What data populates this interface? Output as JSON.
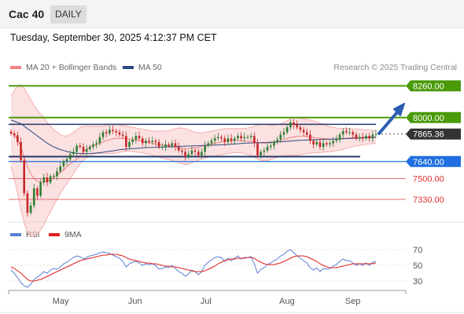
{
  "header": {
    "title": "Cac 40",
    "period": "DAILY"
  },
  "datetime": "Tuesday, September 30, 2025 4:12:37 PM CET",
  "legend": {
    "ma20": {
      "label": "MA 20 + Bollinger Bands",
      "color": "#f08080"
    },
    "ma50": {
      "label": "MA 50",
      "color": "#2d4a80"
    }
  },
  "copyright": "Research © 2025 Trading Central",
  "rsi_legend": {
    "rsi": {
      "label": "RSI",
      "color": "#5b7fd6"
    },
    "ma9": {
      "label": "9MA",
      "color": "#e02020"
    }
  },
  "colors": {
    "up": "#2e7d32",
    "down": "#c62828",
    "resistance": "#4a9a0a",
    "support": "#1f6fe0",
    "support_red": "#e07070",
    "current": "#333333"
  },
  "chart_data": [
    {
      "type": "candlestick",
      "ylim": [
        7150,
        8320
      ],
      "x_months": [
        "May",
        "Jun",
        "Jul",
        "Aug",
        "Sep"
      ],
      "levels": [
        {
          "value": 8260,
          "label": "8260.00",
          "kind": "resistance"
        },
        {
          "value": 8000,
          "label": "8000.00",
          "kind": "resistance"
        },
        {
          "value": 7865.36,
          "label": "7865.36",
          "kind": "current"
        },
        {
          "value": 7640,
          "label": "7640.00",
          "kind": "support"
        },
        {
          "value": 7500,
          "label": "7500.00",
          "kind": "support_red"
        },
        {
          "value": 7330,
          "label": "7330.00",
          "kind": "support_red"
        }
      ],
      "closes": [
        7870,
        7855,
        7800,
        7650,
        7380,
        7220,
        7280,
        7420,
        7360,
        7470,
        7510,
        7470,
        7520,
        7520,
        7560,
        7600,
        7640,
        7660,
        7700,
        7720,
        7770,
        7760,
        7720,
        7740,
        7760,
        7780,
        7790,
        7840,
        7880,
        7870,
        7900,
        7890,
        7880,
        7860,
        7850,
        7760,
        7800,
        7820,
        7850,
        7830,
        7790,
        7810,
        7800,
        7810,
        7800,
        7760,
        7760,
        7780,
        7770,
        7790,
        7760,
        7730,
        7720,
        7680,
        7700,
        7730,
        7720,
        7690,
        7720,
        7770,
        7790,
        7810,
        7830,
        7840,
        7830,
        7800,
        7830,
        7810,
        7830,
        7850,
        7830,
        7840,
        7840,
        7850,
        7790,
        7690,
        7720,
        7730,
        7760,
        7770,
        7800,
        7820,
        7860,
        7880,
        7920,
        7960,
        7940,
        7920,
        7900,
        7880,
        7860,
        7810,
        7780,
        7800,
        7760,
        7790,
        7780,
        7790,
        7810,
        7820,
        7860,
        7890,
        7880,
        7880,
        7860,
        7830,
        7840,
        7830,
        7850,
        7830,
        7860,
        7865
      ],
      "ma20": [
        7880,
        7860,
        7820,
        7760,
        7680,
        7600,
        7540,
        7500,
        7480,
        7470,
        7470,
        7480,
        7490,
        7510,
        7530,
        7550,
        7570,
        7600,
        7620,
        7640,
        7660,
        7690,
        7720,
        7740,
        7760,
        7770,
        7780,
        7790,
        7800,
        7810,
        7820,
        7825,
        7830,
        7830,
        7830,
        7830,
        7825,
        7820,
        7815,
        7810,
        7805,
        7800,
        7795,
        7790,
        7785,
        7780,
        7775,
        7770,
        7768,
        7765,
        7760,
        7755,
        7750,
        7745,
        7745,
        7748,
        7752,
        7758,
        7765,
        7772,
        7780,
        7785,
        7790,
        7795,
        7800,
        7805,
        7808,
        7810,
        7812,
        7812,
        7810,
        7808,
        7806,
        7805,
        7800,
        7795,
        7792,
        7790,
        7792,
        7795,
        7800,
        7806,
        7812,
        7820,
        7828,
        7836,
        7842,
        7846,
        7848,
        7848,
        7846,
        7842,
        7838,
        7834,
        7830,
        7828,
        7826,
        7824,
        7822,
        7822,
        7824,
        7828,
        7832,
        7834,
        7836,
        7836,
        7836,
        7836,
        7837,
        7838,
        7840,
        7842
      ],
      "upper_band": [
        8180,
        8220,
        8260,
        8270,
        8240,
        8190,
        8150,
        8100,
        8060,
        8030,
        8000,
        7960,
        7930,
        7900,
        7880,
        7860,
        7850,
        7850,
        7860,
        7880,
        7900,
        7920,
        7930,
        7930,
        7930,
        7930,
        7930,
        7930,
        7930,
        7935,
        7940,
        7945,
        7945,
        7940,
        7935,
        7930,
        7925,
        7920,
        7915,
        7910,
        7905,
        7900,
        7895,
        7890,
        7890,
        7890,
        7890,
        7890,
        7895,
        7900,
        7910,
        7915,
        7915,
        7910,
        7900,
        7890,
        7880,
        7875,
        7875,
        7880,
        7885,
        7890,
        7895,
        7900,
        7905,
        7910,
        7910,
        7910,
        7910,
        7910,
        7910,
        7912,
        7915,
        7920,
        7930,
        7940,
        7945,
        7945,
        7940,
        7935,
        7935,
        7940,
        7950,
        7960,
        7975,
        7990,
        8000,
        8000,
        7995,
        7990,
        7985,
        7980,
        7975,
        7965,
        7955,
        7945,
        7935,
        7925,
        7920,
        7915,
        7912,
        7910,
        7910,
        7910,
        7908,
        7906,
        7904,
        7902,
        7900,
        7898,
        7896,
        7895
      ],
      "lower_band": [
        7600,
        7500,
        7380,
        7250,
        7140,
        7060,
        7030,
        7030,
        7050,
        7080,
        7120,
        7180,
        7230,
        7280,
        7330,
        7380,
        7420,
        7460,
        7500,
        7540,
        7580,
        7620,
        7650,
        7670,
        7690,
        7700,
        7705,
        7705,
        7705,
        7705,
        7705,
        7705,
        7710,
        7715,
        7720,
        7725,
        7725,
        7722,
        7718,
        7714,
        7710,
        7705,
        7700,
        7692,
        7684,
        7676,
        7668,
        7660,
        7655,
        7650,
        7640,
        7630,
        7620,
        7615,
        7620,
        7630,
        7640,
        7650,
        7660,
        7668,
        7675,
        7680,
        7685,
        7690,
        7695,
        7700,
        7705,
        7710,
        7712,
        7714,
        7712,
        7705,
        7697,
        7690,
        7675,
        7660,
        7650,
        7645,
        7648,
        7655,
        7665,
        7675,
        7685,
        7690,
        7690,
        7690,
        7690,
        7692,
        7696,
        7700,
        7705,
        7708,
        7710,
        7712,
        7714,
        7716,
        7718,
        7720,
        7724,
        7728,
        7733,
        7740,
        7748,
        7755,
        7762,
        7768,
        7772,
        7776,
        7780,
        7784,
        7786,
        7788
      ],
      "ma50": [
        7980,
        7970,
        7960,
        7950,
        7930,
        7910,
        7890,
        7870,
        7850,
        7830,
        7810,
        7790,
        7775,
        7760,
        7748,
        7738,
        7730,
        7722,
        7716,
        7712,
        7708,
        7706,
        7705,
        7705,
        7706,
        7708,
        7710,
        7713,
        7716,
        7720,
        7724,
        7728,
        7732,
        7736,
        7740,
        7742,
        7744,
        7746,
        7748,
        7750,
        7752,
        7754,
        7755,
        7756,
        7757,
        7758,
        7759,
        7760,
        7761,
        7762,
        7763,
        7764,
        7765,
        7766,
        7767,
        7768,
        7769,
        7770,
        7771,
        7772,
        7773,
        7774,
        7775,
        7776,
        7777,
        7778,
        7780,
        7782,
        7784,
        7786,
        7788,
        7790,
        7791,
        7792,
        7793,
        7794,
        7795,
        7796,
        7797,
        7798,
        7799,
        7800,
        7802,
        7804,
        7806,
        7808,
        7810,
        7812,
        7814,
        7815,
        7816,
        7817,
        7818,
        7819,
        7820,
        7821,
        7822,
        7823,
        7824,
        7825,
        7826,
        7827,
        7828,
        7829,
        7830,
        7831,
        7832,
        7833,
        7834,
        7835,
        7836,
        7837
      ]
    },
    {
      "type": "line",
      "yticks": [
        70,
        50,
        30
      ],
      "ylim": [
        20,
        80
      ],
      "series": [
        {
          "name": "RSI",
          "values": [
            44,
            40,
            34,
            28,
            24,
            22,
            26,
            32,
            35,
            38,
            42,
            40,
            44,
            46,
            45,
            48,
            52,
            54,
            57,
            60,
            62,
            61,
            58,
            60,
            62,
            63,
            64,
            66,
            67,
            66,
            65,
            63,
            61,
            59,
            55,
            48,
            52,
            54,
            55,
            53,
            50,
            52,
            51,
            52,
            50,
            45,
            46,
            48,
            47,
            50,
            46,
            42,
            40,
            36,
            39,
            44,
            42,
            38,
            42,
            50,
            54,
            57,
            60,
            61,
            60,
            55,
            59,
            56,
            59,
            62,
            58,
            60,
            60,
            61,
            52,
            40,
            45,
            47,
            51,
            53,
            56,
            58,
            62,
            64,
            68,
            70,
            66,
            62,
            59,
            56,
            53,
            47,
            44,
            47,
            42,
            46,
            45,
            46,
            49,
            51,
            55,
            58,
            56,
            56,
            53,
            50,
            52,
            50,
            53,
            50,
            54,
            55
          ]
        },
        {
          "name": "9MA",
          "values": [
            48,
            46,
            43,
            40,
            36,
            32,
            30,
            30,
            31,
            32,
            34,
            36,
            38,
            40,
            42,
            44,
            46,
            48,
            50,
            52,
            54,
            56,
            57,
            58,
            59,
            60,
            61,
            62,
            63,
            63,
            64,
            64,
            64,
            63,
            62,
            60,
            58,
            57,
            56,
            55,
            54,
            53,
            53,
            52,
            52,
            51,
            50,
            49,
            49,
            48,
            48,
            47,
            46,
            45,
            44,
            43,
            42,
            42,
            42,
            43,
            45,
            47,
            49,
            52,
            54,
            56,
            57,
            58,
            58,
            59,
            59,
            59,
            60,
            60,
            59,
            56,
            54,
            52,
            51,
            51,
            51,
            52,
            53,
            55,
            57,
            59,
            61,
            62,
            62,
            62,
            61,
            59,
            57,
            55,
            52,
            50,
            48,
            47,
            47,
            47,
            48,
            49,
            50,
            51,
            52,
            52,
            52,
            52,
            52,
            52,
            52,
            53
          ]
        }
      ]
    }
  ]
}
